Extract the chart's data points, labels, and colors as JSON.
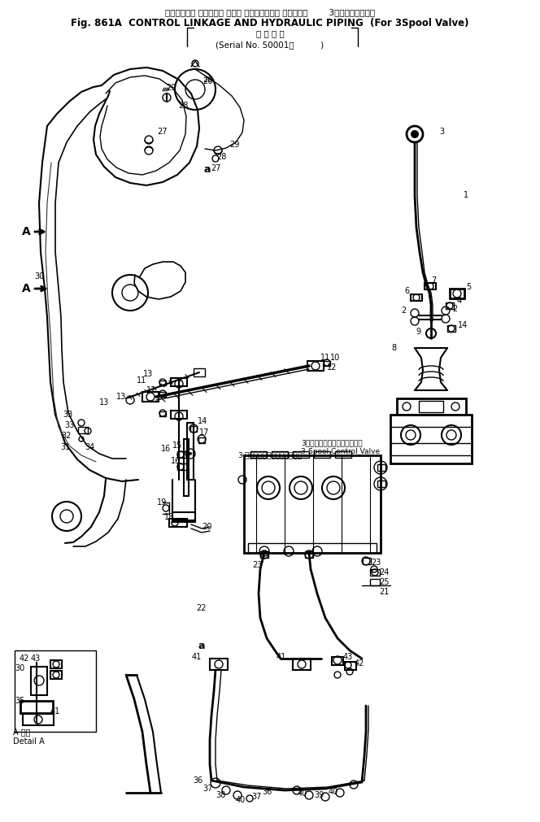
{
  "title_jp": "コントロール リンケージ および ハイドロリック パイピング        3スプールバルブ用",
  "title_en": "Fig. 861A  CONTROL LINKAGE AND HYDRAULIC PIPING  (For 3Spool Valve)",
  "subtitle_jp": "適 用 号 機",
  "subtitle_serial": "(Serial No. 50001～",
  "label_3spool_jp": "3スプールコントロールバルブ",
  "label_3spool_en": "3-Spool Control Valve",
  "label_detail_jp": "A 詳細",
  "label_detail_en": "Detail A",
  "bg_color": "#ffffff",
  "line_color": "#000000",
  "fig_width": 6.64,
  "fig_height": 10.11
}
